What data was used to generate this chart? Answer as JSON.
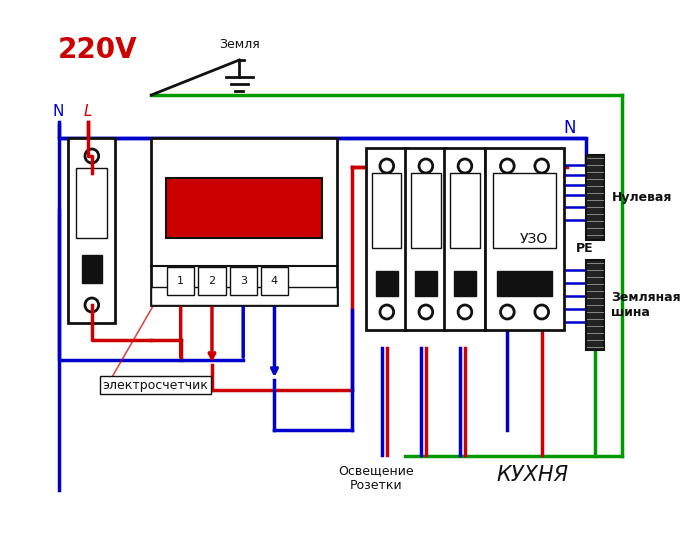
{
  "bg_color": "#ffffff",
  "red": "#cc0000",
  "blue": "#0000cc",
  "green": "#009900",
  "black": "#111111",
  "label_220": "220V",
  "label_N": "N",
  "label_L": "L",
  "label_Zemlya": "Земля",
  "label_electro": "электросчетчик",
  "label_osveshenie": "Освещение\nРозетки",
  "label_kuhnya": "КУХНЯ",
  "label_nulevaya": "Нулевая",
  "label_zemlyanaya": "Земляная\nшина",
  "label_PE": "PE",
  "label_UZO": "УЗО",
  "label_N_right": "N",
  "fig_width": 6.95,
  "fig_height": 5.38,
  "dpi": 100
}
